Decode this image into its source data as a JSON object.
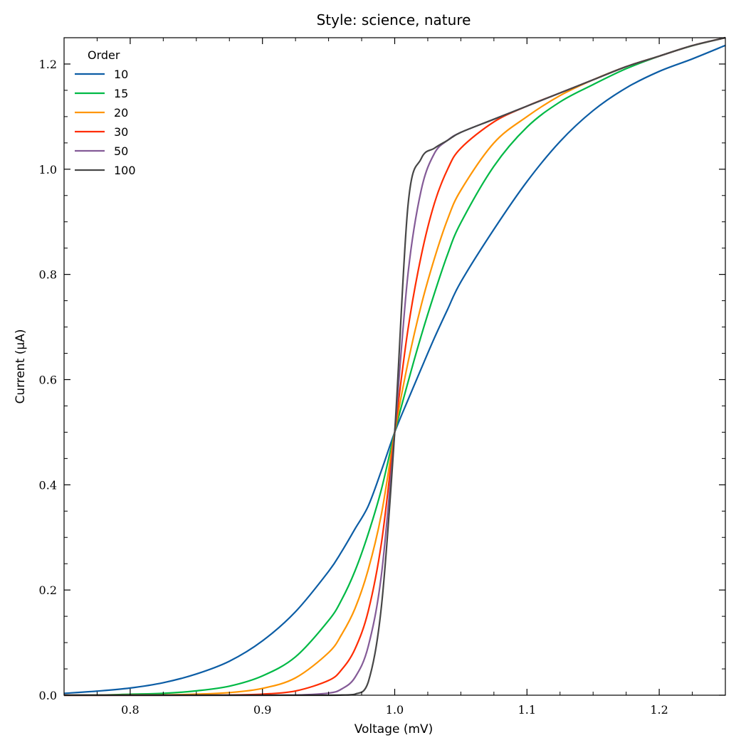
{
  "chart_data": {
    "type": "line",
    "title": "Style: science, nature",
    "xlabel": "Voltage (mV)",
    "ylabel": "Current (μA)",
    "xlim": [
      0.75,
      1.25
    ],
    "ylim": [
      0.0,
      1.25
    ],
    "xticks": [
      0.8,
      0.9,
      1.0,
      1.1,
      1.2
    ],
    "xtick_labels": [
      "0.8",
      "0.9",
      "1.0",
      "1.1",
      "1.2"
    ],
    "yticks": [
      0.0,
      0.2,
      0.4,
      0.6,
      0.8,
      1.0,
      1.2
    ],
    "ytick_labels": [
      "0.0",
      "0.2",
      "0.4",
      "0.6",
      "0.8",
      "1.0",
      "1.2"
    ],
    "grid": false,
    "legend": {
      "title": "Order",
      "placement": "top-left"
    },
    "x": [
      0.75,
      0.775,
      0.8,
      0.825,
      0.85,
      0.875,
      0.9,
      0.925,
      0.95,
      0.96,
      0.97,
      0.98,
      0.99,
      1.0,
      1.01,
      1.02,
      1.03,
      1.04,
      1.05,
      1.075,
      1.1,
      1.125,
      1.15,
      1.175,
      1.2,
      1.225,
      1.25
    ],
    "series": [
      {
        "name": "10",
        "color": "#0C5DA5",
        "values": [
          0.0035,
          0.0078,
          0.0137,
          0.0238,
          0.0403,
          0.0646,
          0.1033,
          0.1588,
          0.2354,
          0.2735,
          0.3163,
          0.3598,
          0.4275,
          0.5,
          0.5612,
          0.6207,
          0.6792,
          0.7336,
          0.7857,
          0.8857,
          0.9765,
          1.0527,
          1.1114,
          1.1546,
          1.186,
          1.2097,
          1.2354
        ]
      },
      {
        "name": "15",
        "color": "#00B945",
        "values": [
          0.0001,
          0.0003,
          0.0019,
          0.0035,
          0.0083,
          0.0172,
          0.0367,
          0.073,
          0.1421,
          0.1821,
          0.2365,
          0.3071,
          0.3919,
          0.5,
          0.5947,
          0.6831,
          0.7638,
          0.8383,
          0.8982,
          1.0057,
          1.08,
          1.1279,
          1.1609,
          1.1911,
          1.2149,
          1.2347,
          1.25
        ]
      },
      {
        "name": "20",
        "color": "#FF9500",
        "values": [
          0.0,
          0.0,
          0.0003,
          0.0005,
          0.002,
          0.005,
          0.013,
          0.033,
          0.081,
          0.116,
          0.165,
          0.239,
          0.345,
          0.5,
          0.632,
          0.741,
          0.83,
          0.905,
          0.96,
          1.05,
          1.1,
          1.14,
          1.17,
          1.195,
          1.215,
          1.235,
          1.25
        ]
      },
      {
        "name": "30",
        "color": "#FF2C00",
        "values": [
          0.0,
          0.0,
          0.0,
          0.0,
          0.0,
          0.0003,
          0.002,
          0.008,
          0.028,
          0.049,
          0.088,
          0.16,
          0.29,
          0.5,
          0.695,
          0.835,
          0.935,
          1.0,
          1.04,
          1.09,
          1.12,
          1.145,
          1.17,
          1.195,
          1.215,
          1.235,
          1.25
        ]
      },
      {
        "name": "50",
        "color": "#845B97",
        "values": [
          0.0,
          0.0,
          0.0,
          0.0,
          0.0,
          0.0,
          0.0,
          0.0003,
          0.004,
          0.012,
          0.034,
          0.093,
          0.23,
          0.5,
          0.8,
          0.96,
          1.03,
          1.055,
          1.07,
          1.095,
          1.12,
          1.145,
          1.17,
          1.195,
          1.215,
          1.235,
          1.25
        ]
      },
      {
        "name": "100",
        "color": "#474747",
        "values": [
          0.0,
          0.0,
          0.0,
          0.0,
          0.0,
          0.0,
          0.0,
          0.0,
          0.0,
          0.0003,
          0.002,
          0.025,
          0.17,
          0.5,
          0.93,
          1.02,
          1.04,
          1.055,
          1.07,
          1.095,
          1.12,
          1.145,
          1.17,
          1.195,
          1.215,
          1.235,
          1.25
        ]
      }
    ]
  }
}
